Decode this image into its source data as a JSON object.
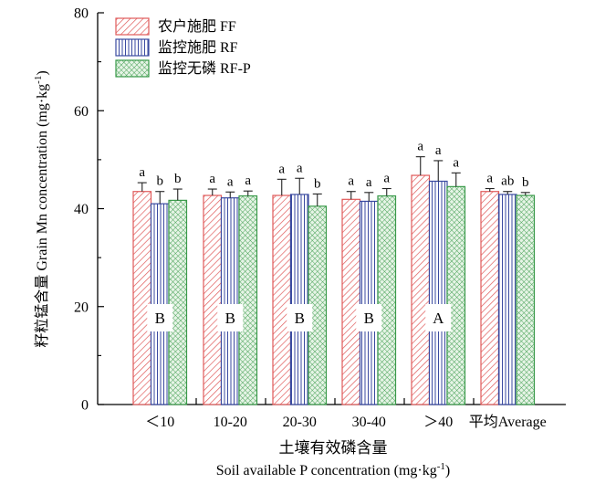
{
  "chart_data": {
    "type": "bar",
    "ylabel": "籽粒锰含量 Grain Mn concentration (mg·kg-1)",
    "ylabel_parts": {
      "main": "籽粒锰含量 Grain Mn concentration (mg·kg",
      "sup": "-1",
      "close": ")"
    },
    "xlabel_cn": "土壤有效磷含量",
    "xlabel_en_parts": {
      "main": "Soil available P concentration (mg·kg",
      "sup": "-1",
      "close": ")"
    },
    "ylim": [
      0,
      80
    ],
    "yticks": [
      "0",
      "20",
      "40",
      "60",
      "80"
    ],
    "categories": [
      "＜10",
      "10-20",
      "20-30",
      "30-40",
      "＞40",
      "平均Average"
    ],
    "series": [
      {
        "name": "农户施肥 FF",
        "color": "#e05a5a",
        "pattern": "diagonal",
        "values": [
          43.5,
          42.7,
          42.7,
          41.9,
          46.8,
          43.5
        ],
        "errors": [
          1.8,
          1.3,
          3.3,
          1.6,
          3.8,
          0.6
        ],
        "letters": [
          "a",
          "a",
          "a",
          "a",
          "a",
          "a"
        ]
      },
      {
        "name": "监控施肥 RF",
        "color": "#3a4aa0",
        "pattern": "vertical",
        "values": [
          41.0,
          42.2,
          42.9,
          41.5,
          45.6,
          42.9
        ],
        "errors": [
          2.5,
          1.2,
          3.3,
          1.8,
          4.2,
          0.6
        ],
        "letters": [
          "b",
          "a",
          "a",
          "a",
          "a",
          "ab"
        ]
      },
      {
        "name": "监控无磷 RF-P",
        "color": "#3a9a4a",
        "pattern": "crosshatch",
        "values": [
          41.7,
          42.6,
          40.5,
          42.6,
          44.5,
          42.7
        ],
        "errors": [
          2.3,
          1.0,
          2.5,
          1.5,
          2.8,
          0.6
        ],
        "letters": [
          "b",
          "a",
          "b",
          "a",
          "a",
          "b"
        ]
      }
    ],
    "group_letters": [
      "B",
      "B",
      "B",
      "B",
      "A"
    ],
    "legend_position": "top-left",
    "grid": false
  }
}
